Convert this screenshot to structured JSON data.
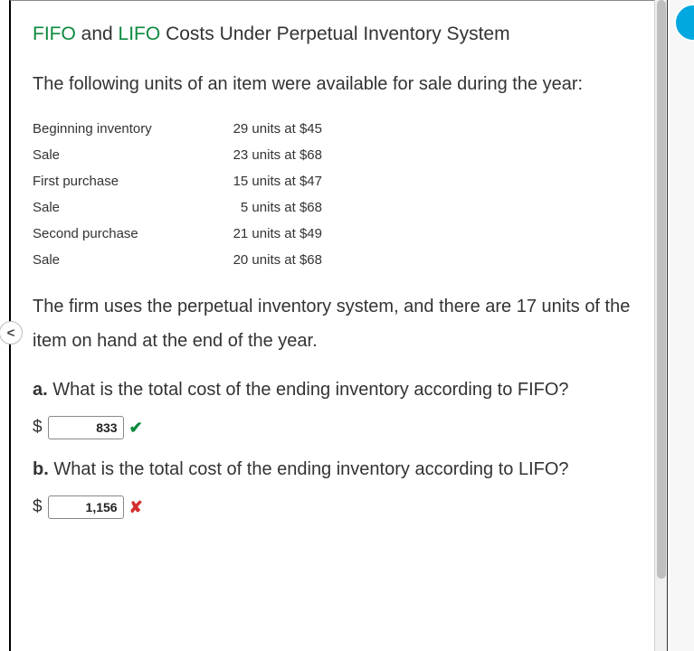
{
  "title": {
    "term1": "FIFO",
    "conj": " and ",
    "term2": "LIFO",
    "rest": " Costs Under Perpetual Inventory System"
  },
  "intro": "The following units of an item were available for sale during the year:",
  "table": {
    "rows": [
      {
        "label": "Beginning inventory",
        "value": "29 units at $45"
      },
      {
        "label": "Sale",
        "value": "23 units at $68"
      },
      {
        "label": "First purchase",
        "value": "15 units at $47"
      },
      {
        "label": "Sale",
        "value": "5 units at $68"
      },
      {
        "label": "Second purchase",
        "value": "21 units at $49"
      },
      {
        "label": "Sale",
        "value": "20 units at $68"
      }
    ]
  },
  "midtext": "The firm uses the perpetual inventory system, and there are 17 units of the item on hand at the end of the year.",
  "qa": {
    "a": {
      "letter": "a.",
      "text": "  What is the total cost of the ending inventory according to FIFO?",
      "currency": "$",
      "value": "833",
      "mark": "✔",
      "correct": true
    },
    "b": {
      "letter": "b.",
      "text": "  What is the total cost of the ending inventory according to LIFO?",
      "currency": "$",
      "value": "1,156",
      "mark": "✘",
      "correct": false
    }
  },
  "nav_badge": "<",
  "colors": {
    "green": "#0b8a3e",
    "red": "#d32f2f",
    "text": "#333333",
    "accent_blue": "#00a7e0"
  }
}
